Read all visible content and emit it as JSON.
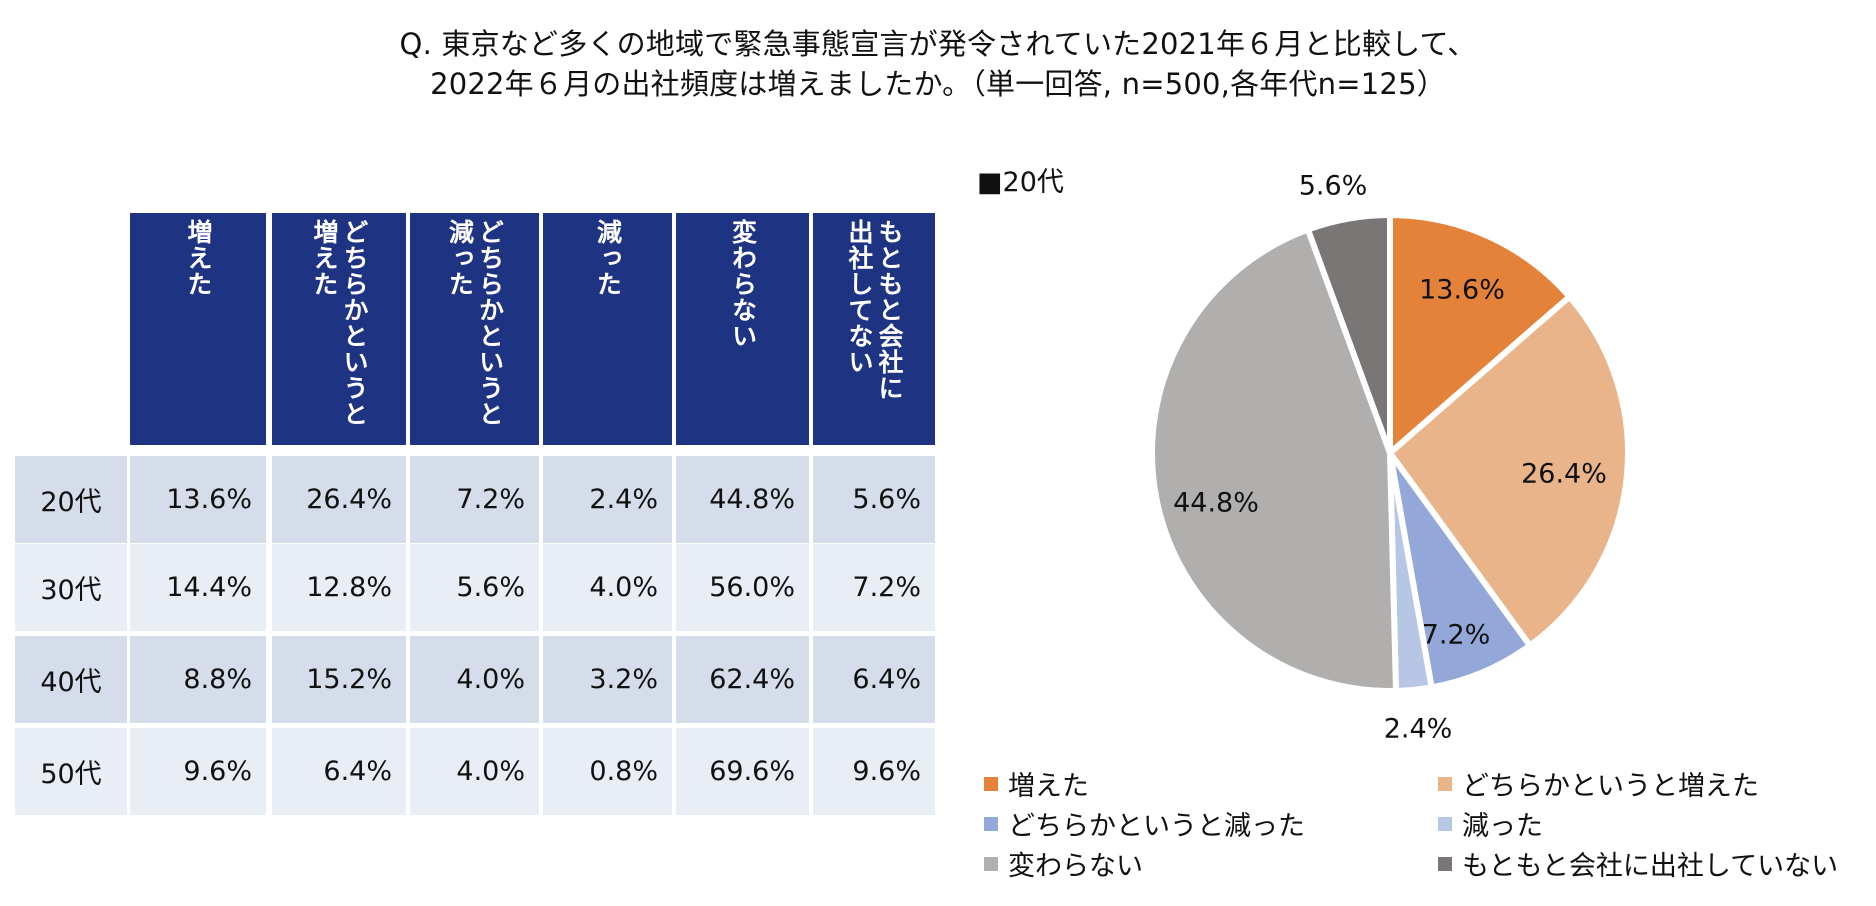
{
  "title": {
    "line1": "Q. 東京など多くの地域で緊急事態宣言が発令されていた2021年６月と比較して、",
    "line2": "2022年６月の出社頻度は増えましたか。（単一回答, n=500,各年代n=125）"
  },
  "table": {
    "columns": [
      "増えた",
      "どちらかというと増えた",
      "どちらかというと減った",
      "減った",
      "変わらない",
      "もともと会社に出社してない"
    ],
    "header_lines": [
      [
        "増えた"
      ],
      [
        "どちらかというと",
        "増えた"
      ],
      [
        "どちらかというと",
        "減った"
      ],
      [
        "減った"
      ],
      [
        "変わらない"
      ],
      [
        "もともと会社に",
        "出社してない"
      ]
    ],
    "rows": [
      {
        "label": "20代",
        "values": [
          "13.6%",
          "26.4%",
          "7.2%",
          "2.4%",
          "44.8%",
          "5.6%"
        ]
      },
      {
        "label": "30代",
        "values": [
          "14.4%",
          "12.8%",
          "5.6%",
          "4.0%",
          "56.0%",
          "7.2%"
        ]
      },
      {
        "label": "40代",
        "values": [
          "8.8%",
          "15.2%",
          "4.0%",
          "3.2%",
          "62.4%",
          "6.4%"
        ]
      },
      {
        "label": "50代",
        "values": [
          "9.6%",
          "6.4%",
          "4.0%",
          "0.8%",
          "69.6%",
          "9.6%"
        ]
      }
    ]
  },
  "chart_data": {
    "type": "pie",
    "title": "■20代",
    "categories": [
      "増えた",
      "どちらかというと増えた",
      "どちらかというと減った",
      "減った",
      "変わらない",
      "もともと会社に出社していない"
    ],
    "values": [
      13.6,
      26.4,
      7.2,
      2.4,
      44.8,
      5.6
    ],
    "labels": [
      "13.6%",
      "26.4%",
      "7.2%",
      "2.4%",
      "44.8%",
      "5.6%"
    ],
    "colors": [
      "#e5823a",
      "#eab48b",
      "#93a8d8",
      "#b8c6e6",
      "#b0afad",
      "#7a7675"
    ],
    "legend_position": "bottom"
  }
}
